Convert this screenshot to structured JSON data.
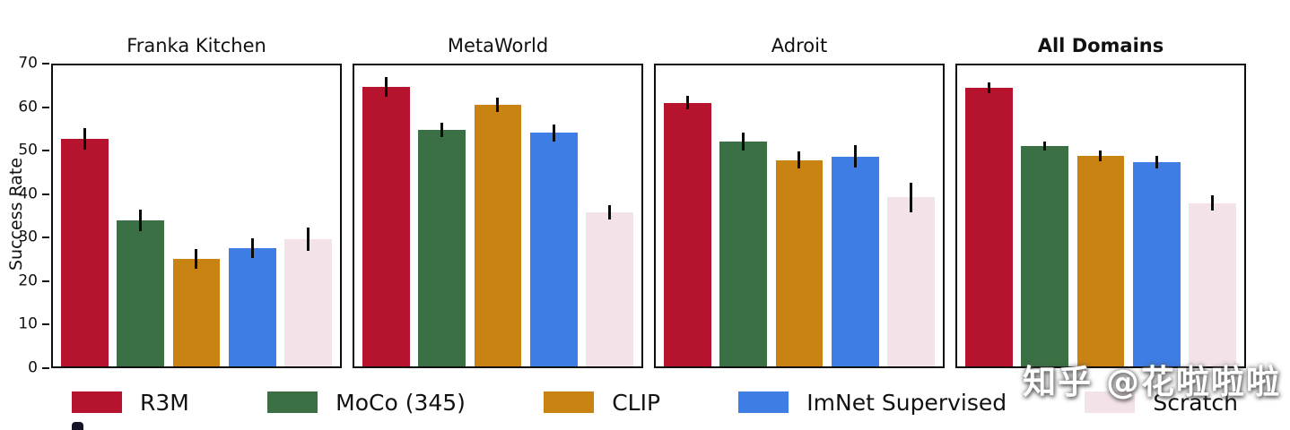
{
  "watermark": "知乎 @花啦啦啦",
  "chart_data": {
    "type": "bar",
    "title": "",
    "xlabel": "",
    "ylabel": "Success Rate",
    "ylim": [
      0,
      70
    ],
    "yticks": [
      0,
      10,
      20,
      30,
      40,
      50,
      60,
      70
    ],
    "grid": false,
    "legend_position": "bottom",
    "series": [
      {
        "name": "R3M",
        "color": "#b6132f"
      },
      {
        "name": "MoCo (345)",
        "color": "#3a7043"
      },
      {
        "name": "CLIP",
        "color": "#c98313"
      },
      {
        "name": "ImNet Supervised",
        "color": "#3d7de4"
      },
      {
        "name": "Scratch",
        "color": "#f3e3e9"
      }
    ],
    "panels": [
      {
        "title": "Franka Kitchen",
        "bold": false,
        "values": [
          53,
          34,
          25,
          27.5,
          29.5
        ],
        "errors": [
          2.5,
          2.5,
          2.2,
          2.3,
          2.7
        ]
      },
      {
        "title": "MetaWorld",
        "bold": false,
        "values": [
          65,
          55,
          60.8,
          54.3,
          35.8
        ],
        "errors": [
          2.2,
          1.6,
          1.6,
          2.0,
          1.6
        ]
      },
      {
        "title": "Adroit",
        "bold": false,
        "values": [
          61.3,
          52.3,
          48,
          48.8,
          39.3
        ],
        "errors": [
          1.6,
          2.0,
          2.0,
          2.6,
          3.5
        ]
      },
      {
        "title": "All Domains",
        "bold": true,
        "values": [
          64.8,
          51.3,
          49,
          47.5,
          38
        ],
        "errors": [
          1.2,
          1.1,
          1.2,
          1.5,
          1.7
        ]
      }
    ]
  }
}
